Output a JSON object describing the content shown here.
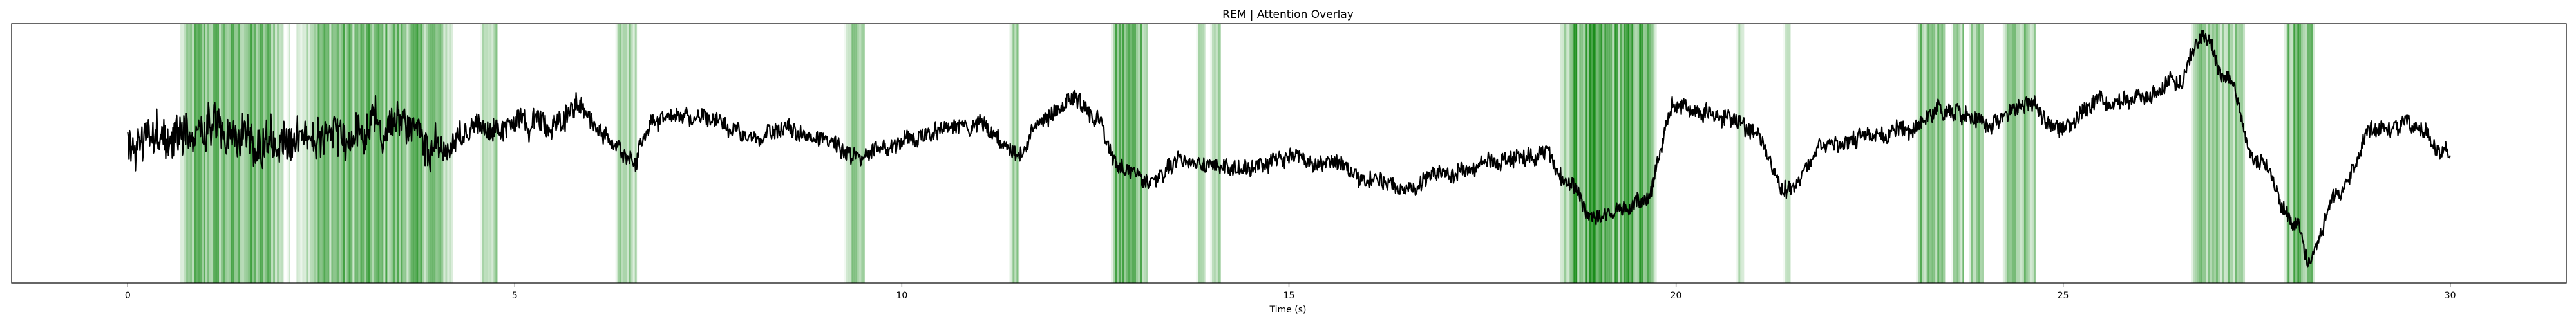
{
  "chart_data": {
    "type": "line",
    "title": "REM | Attention Overlay",
    "xlabel": "Time (s)",
    "ylabel": "",
    "xlim": [
      -1.5,
      31.5
    ],
    "ylim": [
      -2.6,
      2.4
    ],
    "xticks": [
      0,
      5,
      10,
      15,
      20,
      25,
      30
    ],
    "xtick_labels": [
      "0",
      "5",
      "10",
      "15",
      "20",
      "25",
      "30"
    ],
    "yticks_visible": false,
    "grid": false,
    "legend": false,
    "line_color": "#000000",
    "overlay_color": "#008000",
    "attention_regions": [
      {
        "start": 0.68,
        "end": 2.02,
        "intensity": 0.85
      },
      {
        "start": 2.05,
        "end": 2.1,
        "intensity": 0.4
      },
      {
        "start": 2.18,
        "end": 4.2,
        "intensity": 0.85
      },
      {
        "start": 4.55,
        "end": 4.78,
        "intensity": 0.55
      },
      {
        "start": 6.3,
        "end": 6.58,
        "intensity": 0.6
      },
      {
        "start": 9.25,
        "end": 9.52,
        "intensity": 0.7
      },
      {
        "start": 11.38,
        "end": 11.52,
        "intensity": 0.55
      },
      {
        "start": 12.7,
        "end": 13.18,
        "intensity": 0.95
      },
      {
        "start": 13.8,
        "end": 13.92,
        "intensity": 0.5
      },
      {
        "start": 13.98,
        "end": 14.12,
        "intensity": 0.5
      },
      {
        "start": 18.5,
        "end": 19.75,
        "intensity": 1.0
      },
      {
        "start": 20.78,
        "end": 20.88,
        "intensity": 0.45
      },
      {
        "start": 21.38,
        "end": 21.48,
        "intensity": 0.45
      },
      {
        "start": 23.1,
        "end": 23.48,
        "intensity": 0.8
      },
      {
        "start": 23.55,
        "end": 23.72,
        "intensity": 0.65
      },
      {
        "start": 23.78,
        "end": 23.98,
        "intensity": 0.65
      },
      {
        "start": 24.22,
        "end": 24.65,
        "intensity": 0.75
      },
      {
        "start": 26.65,
        "end": 27.35,
        "intensity": 0.65
      },
      {
        "start": 27.85,
        "end": 28.25,
        "intensity": 0.95
      }
    ],
    "signal_anchors": {
      "t": [
        0.0,
        0.5,
        1.0,
        1.5,
        2.0,
        2.5,
        3.0,
        3.5,
        4.0,
        4.5,
        5.0,
        5.5,
        5.8,
        6.3,
        6.5,
        6.8,
        7.5,
        8.0,
        8.5,
        9.0,
        9.5,
        10.0,
        10.5,
        11.0,
        11.5,
        11.8,
        12.2,
        12.5,
        12.8,
        13.2,
        13.6,
        14.0,
        14.5,
        15.0,
        15.5,
        16.0,
        16.5,
        17.0,
        17.5,
        18.0,
        18.3,
        18.6,
        19.0,
        19.3,
        19.6,
        20.0,
        20.5,
        21.0,
        21.4,
        22.0,
        22.5,
        23.0,
        23.4,
        24.0,
        24.5,
        25.0,
        25.5,
        26.0,
        26.5,
        26.8,
        27.1,
        27.5,
        28.0,
        28.2,
        28.5,
        29.0,
        29.5,
        30.0
      ],
      "y": [
        0.0,
        0.3,
        0.4,
        0.2,
        0.1,
        0.2,
        0.3,
        0.5,
        0.0,
        0.3,
        0.45,
        0.5,
        0.7,
        0.1,
        -0.3,
        0.5,
        0.6,
        0.2,
        0.35,
        0.15,
        -0.2,
        0.1,
        0.35,
        0.4,
        -0.1,
        0.5,
        0.9,
        0.6,
        -0.3,
        -0.6,
        -0.2,
        -0.3,
        -0.4,
        -0.2,
        -0.3,
        -0.6,
        -0.8,
        -0.5,
        -0.3,
        -0.2,
        -0.1,
        -0.7,
        -1.4,
        -1.2,
        -1.0,
        0.9,
        0.6,
        0.3,
        -0.8,
        0.1,
        0.3,
        0.4,
        0.7,
        0.5,
        0.8,
        0.4,
        0.9,
        1.0,
        1.3,
        2.1,
        1.4,
        -0.2,
        -1.4,
        -2.2,
        -1.0,
        0.3,
        0.4,
        -0.1
      ],
      "noise": [
        0.55,
        0.5,
        0.45,
        0.45,
        0.4,
        0.4,
        0.35,
        0.3,
        0.2
      ]
    }
  }
}
